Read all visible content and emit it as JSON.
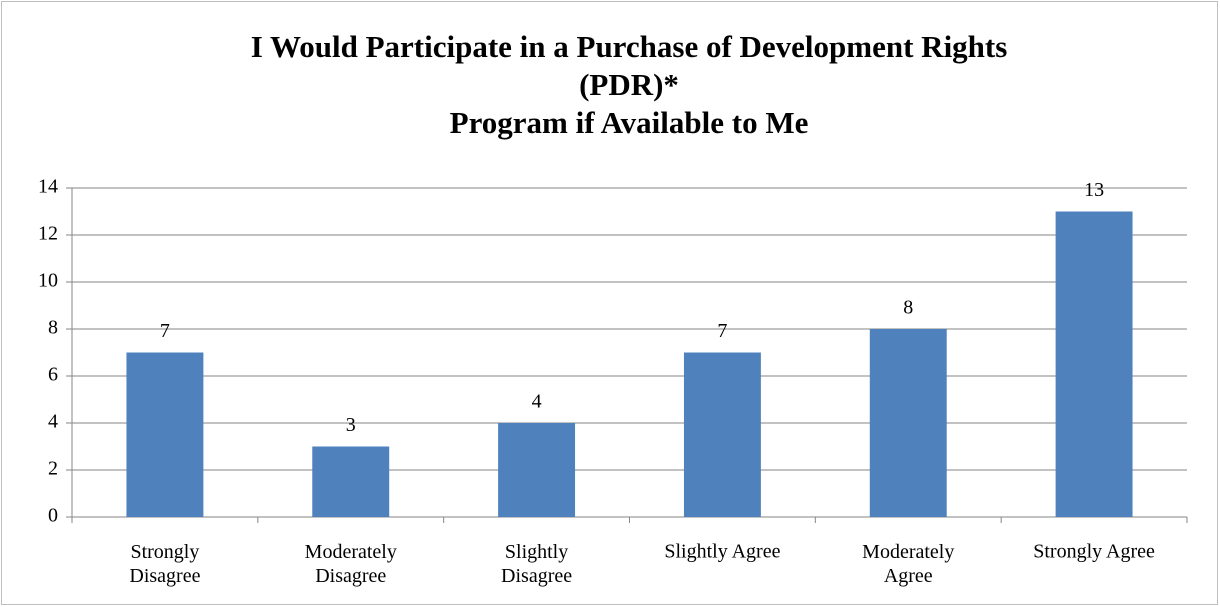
{
  "chart_data": {
    "type": "bar",
    "title": [
      "I Would Participate in a Purchase of Development Rights",
      "(PDR)*",
      "Program if Available to Me"
    ],
    "categories": [
      "Strongly Disagree",
      "Moderately Disagree",
      "Slightly Disagree",
      "Slightly Agree",
      "Moderately Agree",
      "Strongly Agree"
    ],
    "values": [
      7,
      3,
      4,
      7,
      8,
      13
    ],
    "color": "#4f81bd",
    "ylim": [
      0,
      14
    ],
    "yticks": [
      0,
      2,
      4,
      6,
      8,
      10,
      12,
      14
    ],
    "grid": true
  }
}
